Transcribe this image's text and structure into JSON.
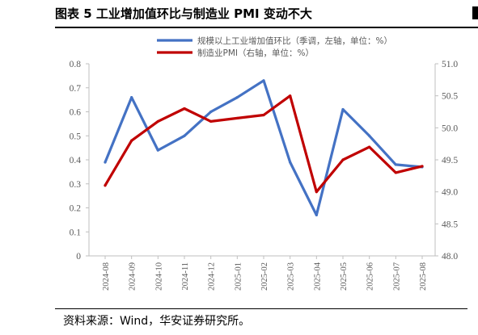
{
  "figure": {
    "title": "图表 5  工业增加值环比与制造业 PMI 变动不大",
    "source": "资料来源：Wind，华安证券研究所。"
  },
  "chart_data": {
    "type": "line",
    "categories": [
      "2024-08",
      "2024-09",
      "2024-10",
      "2024-11",
      "2024-12",
      "2025-01",
      "2025-02",
      "2025-03",
      "2025-04",
      "2025-05",
      "2025-06",
      "2025-07",
      "2025-08"
    ],
    "series": [
      {
        "name": "规模以上工业增加值环比（季调，左轴，单位：%）",
        "axis": "left",
        "color": "#4472C4",
        "values": [
          0.39,
          0.66,
          0.44,
          0.5,
          0.6,
          0.66,
          0.73,
          0.39,
          0.17,
          0.61,
          0.5,
          0.38,
          0.37
        ]
      },
      {
        "name": "制造业PMI（右轴，单位：%）",
        "axis": "right",
        "color": "#C00000",
        "values": [
          49.1,
          49.8,
          50.1,
          50.3,
          50.1,
          50.15,
          50.2,
          50.5,
          49.0,
          49.5,
          49.7,
          49.3,
          49.4
        ]
      }
    ],
    "y_left": {
      "min": 0,
      "max": 0.8,
      "ticks": [
        "0",
        "0.1",
        "0.2",
        "0.3",
        "0.4",
        "0.5",
        "0.6",
        "0.7",
        "0.8"
      ]
    },
    "y_right": {
      "min": 48.0,
      "max": 51.0,
      "ticks": [
        "48.0",
        "48.5",
        "49.0",
        "49.5",
        "50.0",
        "50.5",
        "51.0"
      ]
    },
    "grid": false,
    "legend_position": "top"
  }
}
